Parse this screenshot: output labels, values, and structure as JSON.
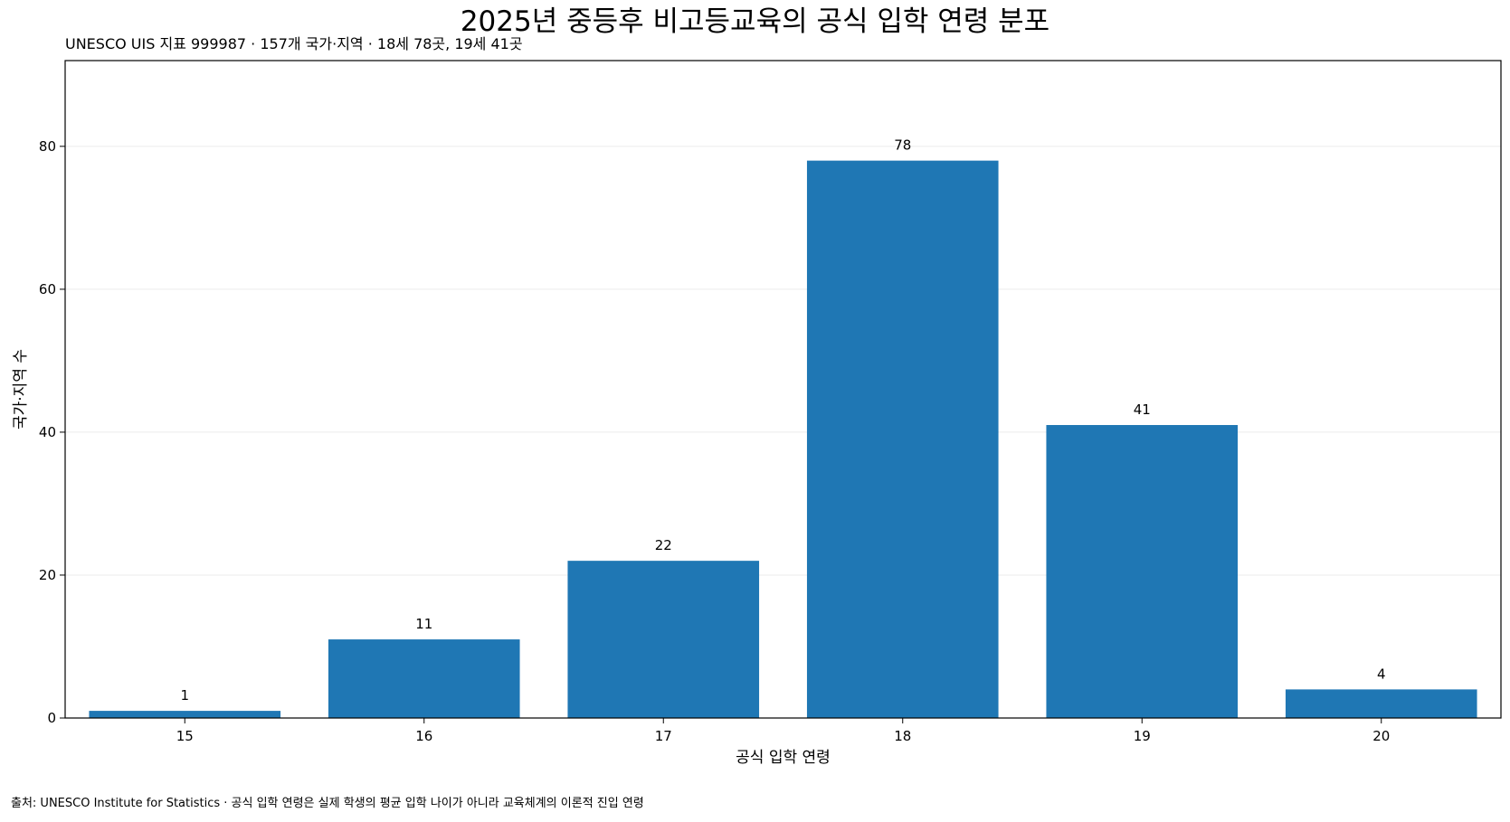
{
  "title": "2025년 중등후 비고등교육의 공식 입학 연령 분포",
  "subtitle": "UNESCO UIS 지표 999987 · 157개 국가·지역 · 18세 78곳, 19세 41곳",
  "source": "출처: UNESCO Institute for Statistics · 공식 입학 연령은 실제 학생의 평균 입학 나이가 아니라 교육체계의 이론적 진입 연령",
  "colors": {
    "bar": "#1f77b4",
    "grid": "#ebebeb",
    "axis": "#000000"
  },
  "chart_data": {
    "type": "bar",
    "categories": [
      "15",
      "16",
      "17",
      "18",
      "19",
      "20"
    ],
    "values": [
      1,
      11,
      22,
      78,
      41,
      4
    ],
    "data_labels": [
      "1",
      "11",
      "22",
      "78",
      "41",
      "4"
    ],
    "xlabel": "공식 입학 연령",
    "ylabel": "국가·지역 수",
    "ylim": [
      0,
      92
    ],
    "yticks": [
      0,
      20,
      40,
      60,
      80
    ],
    "ytick_labels": [
      "0",
      "20",
      "40",
      "60",
      "80"
    ],
    "grid": "horizontal",
    "legend": "none"
  }
}
